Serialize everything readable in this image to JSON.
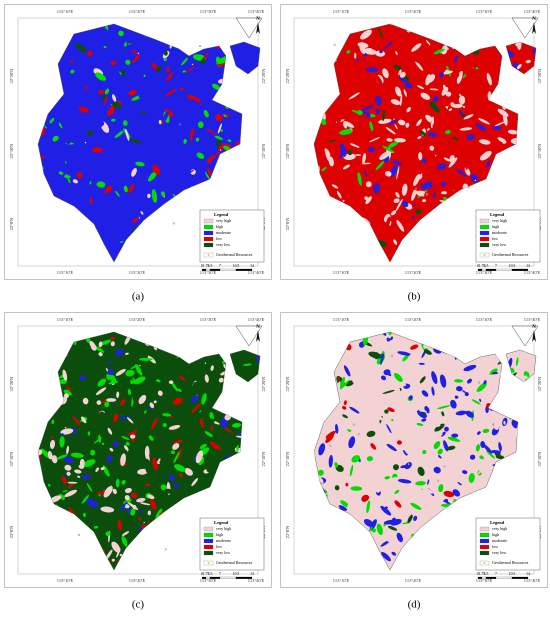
{
  "figure": {
    "frame": {
      "longitudes": [
        "113°10'E",
        "113°20'E",
        "113°30'E",
        "113°40'E"
      ],
      "latitudes": [
        "22°20'N",
        "22°10'N",
        "22°0'N"
      ],
      "north": "N",
      "legend": {
        "title": "Legend",
        "classes": [
          {
            "name": "very high",
            "color": "#f2d2d2"
          },
          {
            "name": "high",
            "color": "#00dd00"
          },
          {
            "name": "moderate",
            "color": "#1f1fe6"
          },
          {
            "name": "low",
            "color": "#dd0000"
          },
          {
            "name": "very low",
            "color": "#0b4d0b"
          }
        ],
        "points": "Geothermal Resources"
      },
      "scale": [
        "0",
        "1.75",
        "3.5",
        "7",
        "10.5",
        "14"
      ]
    },
    "panels": [
      {
        "label": "(a)"
      },
      {
        "label": "(b)"
      },
      {
        "label": "(c)"
      },
      {
        "label": "(d)"
      }
    ]
  }
}
